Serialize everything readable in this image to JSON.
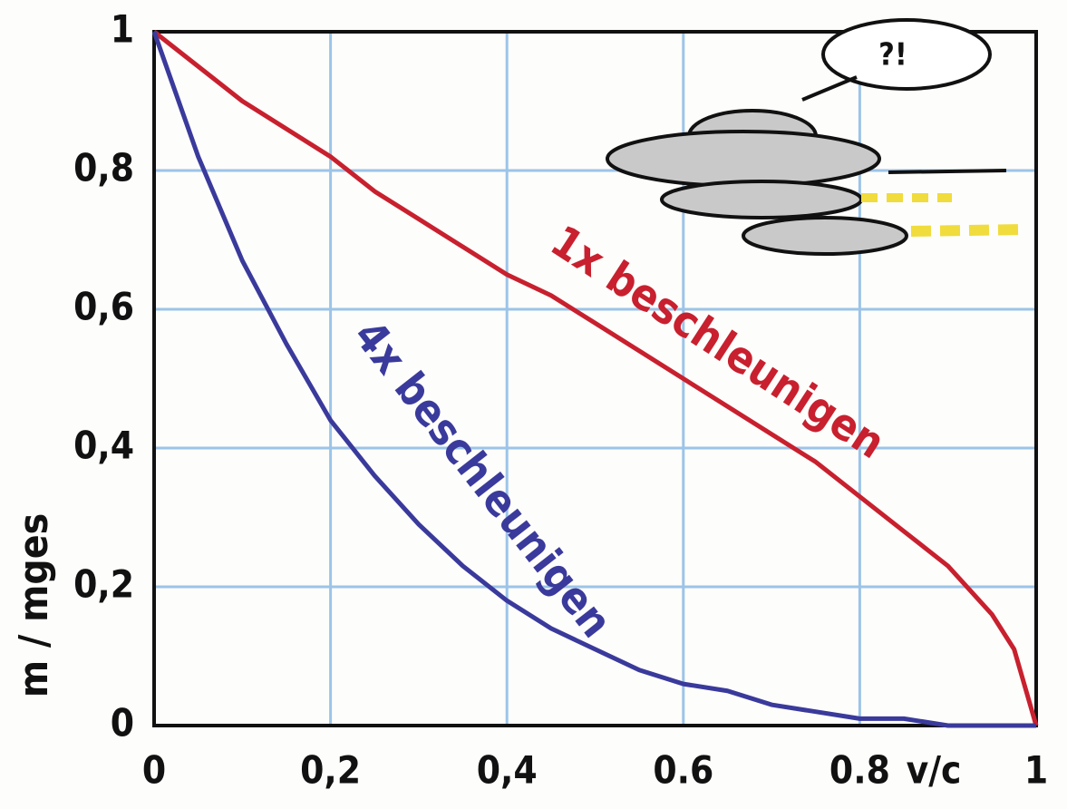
{
  "chart_data": {
    "type": "line",
    "x": [
      0,
      0.05,
      0.1,
      0.15,
      0.2,
      0.25,
      0.3,
      0.35,
      0.4,
      0.45,
      0.5,
      0.55,
      0.6,
      0.65,
      0.7,
      0.75,
      0.8,
      0.85,
      0.9,
      0.95,
      0.975,
      1
    ],
    "series": [
      {
        "name": "1x beschleunigen",
        "color": "#c8202e",
        "values": [
          1,
          0.95,
          0.9,
          0.86,
          0.82,
          0.77,
          0.73,
          0.69,
          0.65,
          0.62,
          0.58,
          0.54,
          0.5,
          0.46,
          0.42,
          0.38,
          0.33,
          0.28,
          0.23,
          0.16,
          0.11,
          0
        ]
      },
      {
        "name": "4x beschleunigen",
        "color": "#3a3a9c",
        "values": [
          1,
          0.82,
          0.67,
          0.55,
          0.44,
          0.36,
          0.29,
          0.23,
          0.18,
          0.14,
          0.11,
          0.08,
          0.06,
          0.05,
          0.03,
          0.02,
          0.01,
          0.01,
          0,
          0,
          0,
          0
        ]
      }
    ],
    "xlabel": "v/c",
    "ylabel": "m / mges",
    "xlim": [
      0,
      1
    ],
    "ylim": [
      0,
      1
    ],
    "xticks": [
      0,
      {
        "value": 0.2,
        "label": "0,2"
      },
      {
        "value": 0.4,
        "label": "0,4"
      },
      0.6,
      0.8,
      1
    ],
    "yticks": [
      0,
      {
        "value": 0.2,
        "label": "0,2"
      },
      {
        "value": 0.4,
        "label": "0,4"
      },
      {
        "value": 0.6,
        "label": "0,6"
      },
      {
        "value": 0.8,
        "label": "0,8"
      },
      1
    ],
    "grid": true,
    "grid_color": "#9cc4e8",
    "speech_bubble": "?!"
  }
}
